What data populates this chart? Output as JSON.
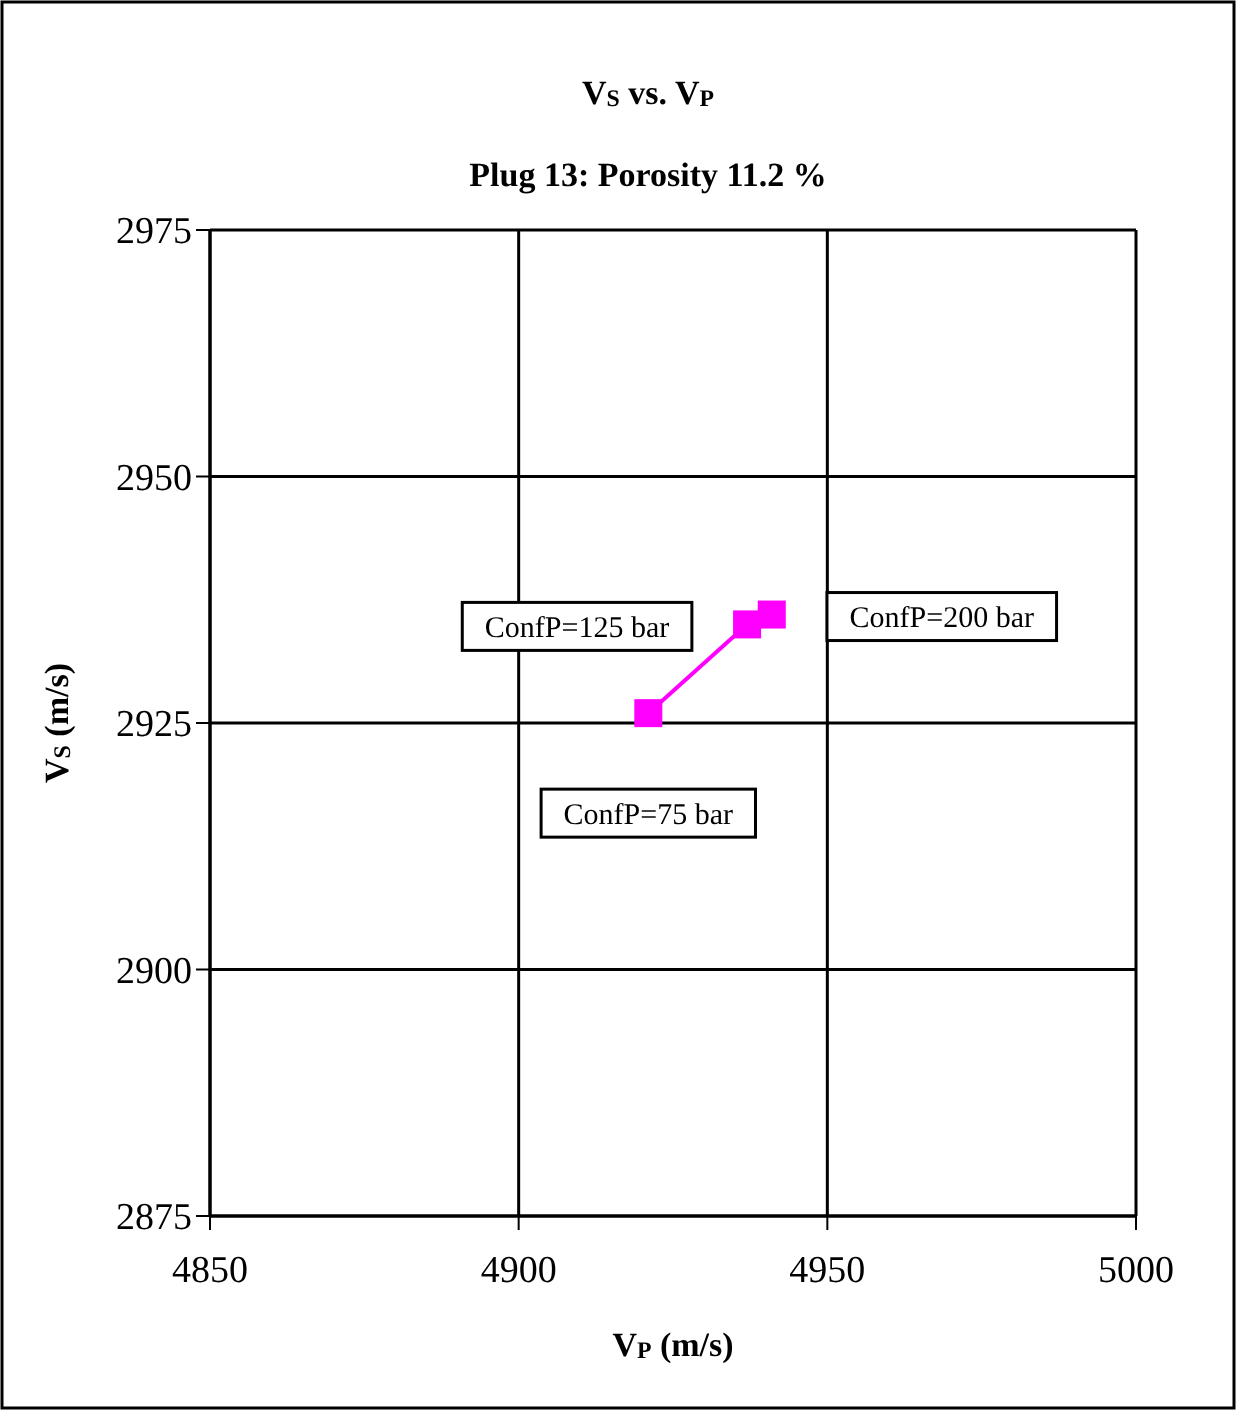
{
  "chart_data": {
    "type": "line",
    "title": "V$_{S}$ vs. V$_{P}$",
    "subtitle": "Plug 13: Porosity 11.2 %",
    "xlabel": "V$_{P}$ (m/s)",
    "ylabel": "V$_{S}$ (m/s)",
    "series": [
      {
        "x": [
          4921,
          4937,
          4941
        ],
        "values": [
          2926,
          2935,
          2936
        ],
        "color": "#ff00ff"
      }
    ],
    "marker": "square",
    "line_style": "solid",
    "grid": true,
    "xlim": [
      4850,
      5000
    ],
    "xticks": [
      4850,
      4900,
      4950,
      5000
    ],
    "ylim": [
      2875,
      2975
    ],
    "yticks": [
      2875,
      2900,
      2925,
      2950,
      2975
    ],
    "annotations": [
      {
        "text": "ConfP=75 bar",
        "x": 4921,
        "y": 2926
      },
      {
        "text": "ConfP=125 bar",
        "x": 4937,
        "y": 2935
      },
      {
        "text": "ConfP=200 bar",
        "x": 4941,
        "y": 2936
      }
    ]
  }
}
